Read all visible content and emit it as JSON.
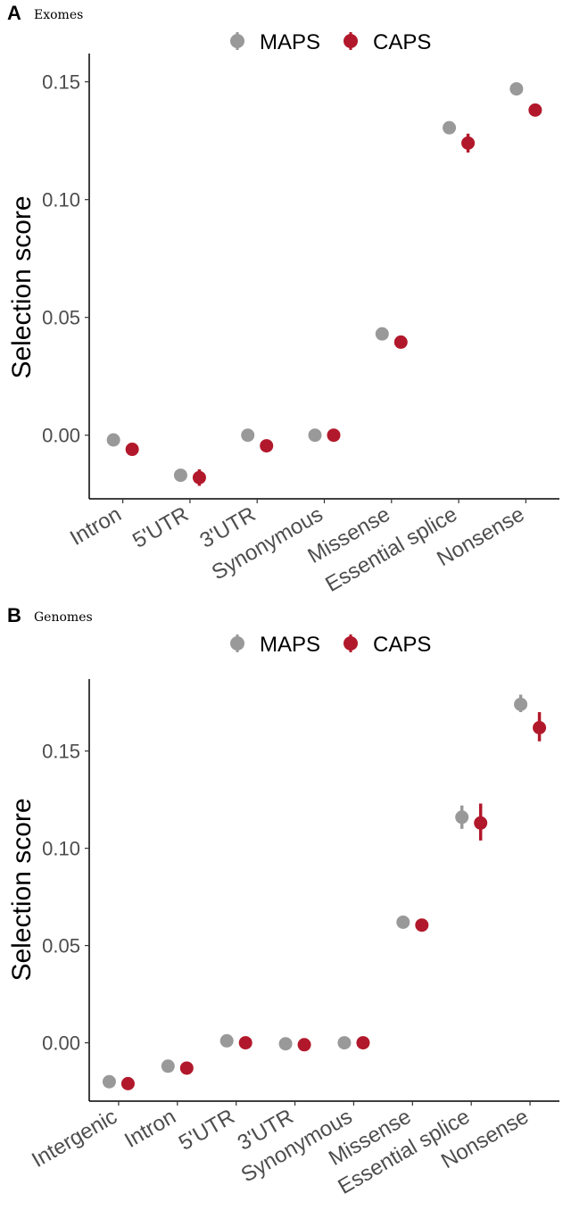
{
  "legend": {
    "series": [
      {
        "name": "MAPS",
        "color": "#999999"
      },
      {
        "name": "CAPS",
        "color": "#b2182b"
      }
    ]
  },
  "chart_data": [
    {
      "panel": "A",
      "subtitle": "Exomes",
      "type": "scatter",
      "ylabel": "Selection score",
      "xlabel": "",
      "ylim": [
        -0.027,
        0.162
      ],
      "yticks": [
        0.0,
        0.05,
        0.1,
        0.15
      ],
      "ytick_labels": [
        "0.00",
        "0.05",
        "0.10",
        "0.15"
      ],
      "categories": [
        "Intron",
        "5'UTR",
        "3'UTR",
        "Synonymous",
        "Missense",
        "Essential splice",
        "Nonsense"
      ],
      "series": [
        {
          "name": "MAPS",
          "color": "#999999",
          "values": [
            -0.002,
            -0.017,
            0.0,
            0.0,
            0.043,
            0.1305,
            0.147
          ],
          "err_low": [
            -0.002,
            -0.017,
            0.0,
            0.0,
            0.043,
            0.1285,
            0.147
          ],
          "err_high": [
            -0.002,
            -0.017,
            0.0,
            0.0,
            0.043,
            0.1325,
            0.147
          ]
        },
        {
          "name": "CAPS",
          "color": "#b2182b",
          "values": [
            -0.006,
            -0.018,
            -0.0045,
            0.0,
            0.0395,
            0.124,
            0.138
          ],
          "err_low": [
            -0.006,
            -0.0215,
            -0.0045,
            0.0,
            0.0395,
            0.12,
            0.1355
          ],
          "err_high": [
            -0.006,
            -0.0145,
            -0.0045,
            0.0,
            0.0395,
            0.128,
            0.1405
          ]
        }
      ]
    },
    {
      "panel": "B",
      "subtitle": "Genomes",
      "type": "scatter",
      "ylabel": "Selection score",
      "xlabel": "",
      "ylim": [
        -0.03,
        0.187
      ],
      "yticks": [
        0.0,
        0.05,
        0.1,
        0.15
      ],
      "ytick_labels": [
        "0.00",
        "0.05",
        "0.10",
        "0.15"
      ],
      "categories": [
        "Intergenic",
        "Intron",
        "5'UTR",
        "3'UTR",
        "Synonymous",
        "Missense",
        "Essential splice",
        "Nonsense"
      ],
      "series": [
        {
          "name": "MAPS",
          "color": "#999999",
          "values": [
            -0.02,
            -0.012,
            0.001,
            -0.0005,
            0.0,
            0.062,
            0.116,
            0.174
          ],
          "err_low": [
            -0.02,
            -0.012,
            0.001,
            -0.0005,
            0.0,
            0.062,
            0.11,
            0.17
          ],
          "err_high": [
            -0.02,
            -0.012,
            0.001,
            -0.0005,
            0.0,
            0.062,
            0.122,
            0.179
          ]
        },
        {
          "name": "CAPS",
          "color": "#b2182b",
          "values": [
            -0.021,
            -0.013,
            0.0,
            -0.001,
            0.0,
            0.0605,
            0.113,
            0.162
          ],
          "err_low": [
            -0.021,
            -0.013,
            0.0,
            -0.001,
            0.0,
            0.0605,
            0.104,
            0.155
          ],
          "err_high": [
            -0.021,
            -0.013,
            0.0,
            -0.001,
            0.0,
            0.0605,
            0.123,
            0.17
          ]
        }
      ]
    }
  ]
}
